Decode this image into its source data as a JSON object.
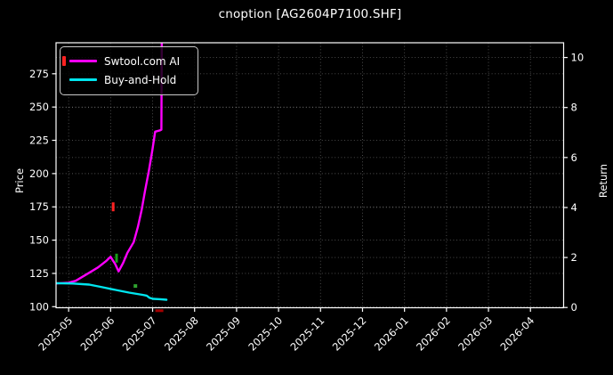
{
  "chart_data": {
    "type": "line",
    "title": "cnoption [AG2604P7100.SHF]",
    "xlabel": "",
    "ylabel_left": "Price",
    "ylabel_right": "Return",
    "x_tick_labels": [
      "2025-05",
      "2025-06",
      "2025-07",
      "2025-08",
      "2025-09",
      "2025-10",
      "2025-11",
      "2025-12",
      "2026-01",
      "2026-02",
      "2026-03",
      "2026-04"
    ],
    "x_tick_rotation": -45,
    "xlim_months": [
      -0.3,
      11.79
    ],
    "ylim_price": [
      99.2,
      298.3
    ],
    "ylim_return": [
      -0.01,
      10.59
    ],
    "price_ticks": [
      100,
      125,
      150,
      175,
      200,
      225,
      250,
      275
    ],
    "return_ticks": [
      0,
      2,
      4,
      6,
      8,
      10
    ],
    "grid": true,
    "grid_style": "dotted",
    "legend_position": "upper-left",
    "series": [
      {
        "name": "Swtool.com AI",
        "color": "#FF00FF",
        "x_months": [
          -0.3,
          0.0,
          0.17,
          0.49,
          0.7,
          0.9,
          1.0,
          1.11,
          1.19,
          1.3,
          1.4,
          1.55,
          1.65,
          1.74,
          1.82,
          1.91,
          1.99,
          2.06,
          2.18,
          2.21,
          2.22
        ],
        "price": [
          117.5,
          118.0,
          119.5,
          125.5,
          129.5,
          134.5,
          137.5,
          132.0,
          126.5,
          133.0,
          140.5,
          148.5,
          160.0,
          173.0,
          187.0,
          202.0,
          217.0,
          231.5,
          232.5,
          233.0,
          310.0
        ]
      },
      {
        "name": "Buy-and-Hold",
        "color": "#00E5EE",
        "x_months": [
          -0.3,
          0.1,
          0.49,
          0.81,
          1.12,
          1.44,
          1.76,
          1.86,
          1.93,
          2.01,
          2.18,
          2.33
        ],
        "price": [
          117.7,
          117.4,
          116.6,
          114.6,
          112.6,
          110.6,
          108.9,
          108.3,
          106.6,
          105.9,
          105.6,
          105.2
        ]
      }
    ],
    "markers": [
      {
        "name": "signal-marker-red-upper",
        "shape": "vdash",
        "color": "#FF2222",
        "x_month": 1.06,
        "price": 175.0
      },
      {
        "name": "signal-marker-green-mid",
        "shape": "vdash",
        "color": "#18A018",
        "x_month": 1.14,
        "price": 136.5
      },
      {
        "name": "signal-marker-green-dot",
        "shape": "square",
        "color": "#2FA32F",
        "x_month": 1.59,
        "price": 115.5
      },
      {
        "name": "signal-marker-red-lower",
        "shape": "hdash",
        "color": "#A40000",
        "x_month": 2.16,
        "price": 97.0
      }
    ],
    "colors": {
      "background": "#000000",
      "text": "#FFFFFF",
      "spine": "#FFFFFF",
      "grid": "#999999",
      "legend_border": "#C8C8C8",
      "legend_marker_dash": "#FF2222"
    }
  },
  "legend": {
    "items": [
      {
        "label": "Swtool.com AI",
        "color": "#FF00FF"
      },
      {
        "label": "Buy-and-Hold",
        "color": "#00E5EE"
      }
    ]
  }
}
